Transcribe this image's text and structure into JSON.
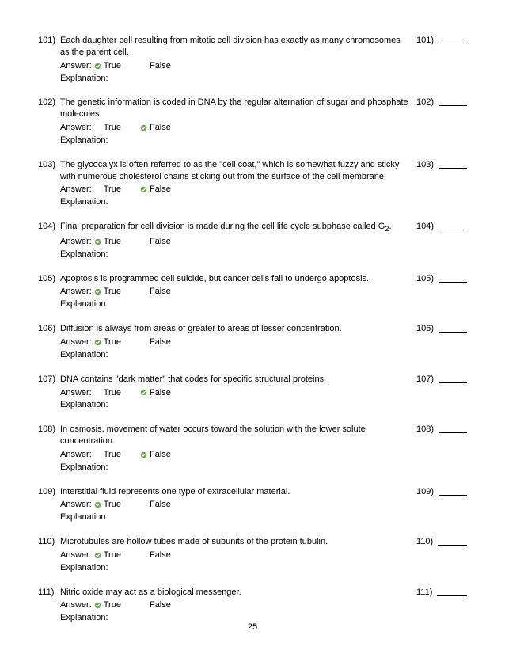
{
  "page_number": "25",
  "answer_label": "Answer:",
  "true_label": "True",
  "false_label": "False",
  "explanation_label": "Explanation:",
  "check_color": "#6aa84f",
  "questions": [
    {
      "num": "101)",
      "text": "Each daughter cell resulting from mitotic cell division has exactly as many chromosomes as the parent cell.",
      "correct": "true"
    },
    {
      "num": "102)",
      "text": "The genetic information is coded in DNA by the regular alternation of sugar and phosphate molecules.",
      "correct": "false"
    },
    {
      "num": "103)",
      "text": "The glycocalyx is often referred to as the \"cell coat,\" which is somewhat fuzzy and sticky with numerous cholesterol chains sticking out from the surface of the cell membrane.",
      "correct": "false"
    },
    {
      "num": "104)",
      "text": "Final preparation for cell division is made during the cell life cycle subphase called G<span class=\"sub\">2</span>.",
      "correct": "true"
    },
    {
      "num": "105)",
      "text": "Apoptosis is programmed cell suicide, but cancer cells fail to undergo apoptosis.",
      "correct": "true"
    },
    {
      "num": "106)",
      "text": "Diffusion is always from areas of greater to areas of lesser concentration.",
      "correct": "true"
    },
    {
      "num": "107)",
      "text": "DNA contains \"dark matter\" that codes for specific structural proteins.",
      "correct": "false"
    },
    {
      "num": "108)",
      "text": "In osmosis, movement of water occurs toward the solution with the lower solute concentration.",
      "correct": "false"
    },
    {
      "num": "109)",
      "text": "Interstitial fluid represents one type of extracellular material.",
      "correct": "true"
    },
    {
      "num": "110)",
      "text": "Microtubules are hollow tubes made of subunits of the protein tubulin.",
      "correct": "true"
    },
    {
      "num": "111)",
      "text": "Nitric oxide may act as a biological messenger.",
      "correct": "true"
    }
  ]
}
